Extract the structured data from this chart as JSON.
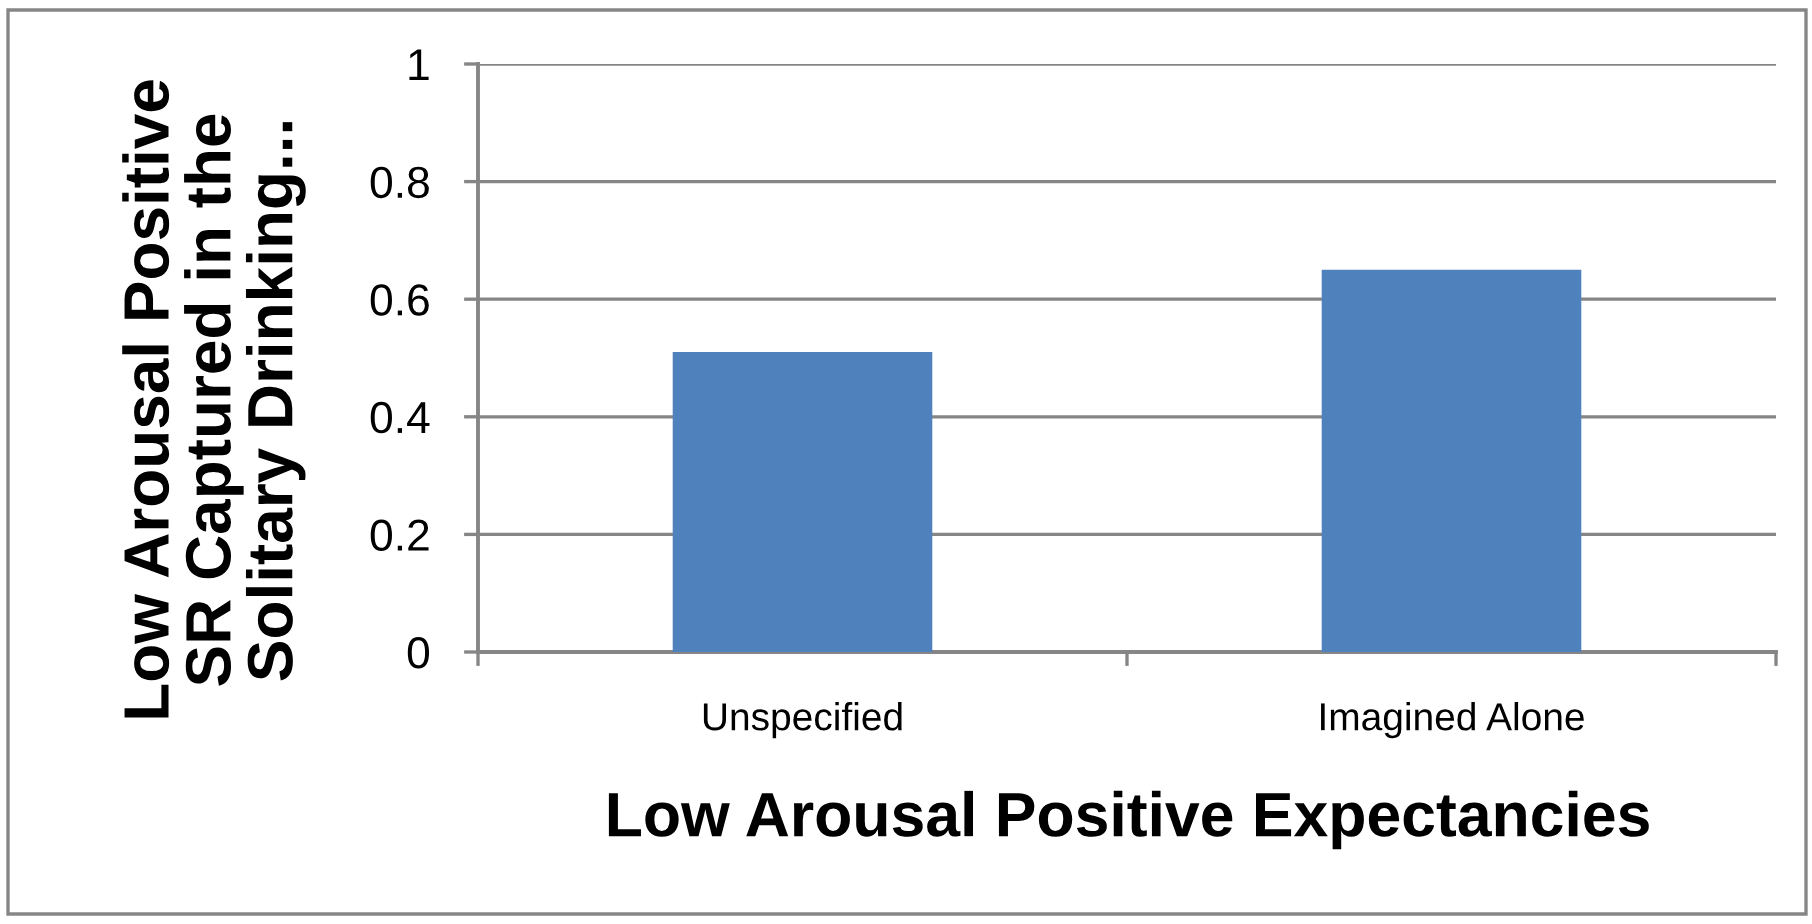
{
  "chart_data": {
    "type": "bar",
    "xlabel": "Low Arousal Positive Expectancies",
    "ylabel": "Low Arousal Positive\nSR Captured in the\nSolitary Drinking...",
    "categories": [
      "Unspecified",
      "Imagined Alone"
    ],
    "values": [
      0.51,
      0.65
    ],
    "color": "#4f81bd",
    "ylim": [
      0,
      1
    ],
    "yticks": [
      0,
      0.2,
      0.4,
      0.6,
      0.8,
      1
    ],
    "grid": "y"
  }
}
